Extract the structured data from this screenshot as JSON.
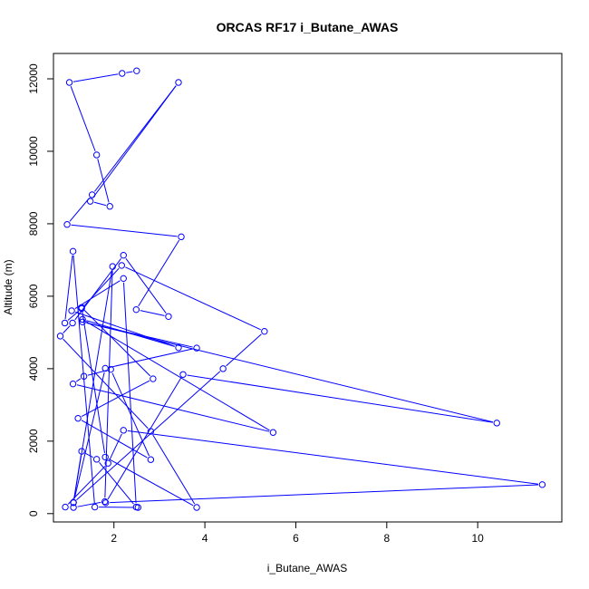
{
  "chart_data": {
    "type": "line",
    "title": "ORCAS RF17 i_Butane_AWAS",
    "xlabel": "i_Butane_AWAS",
    "ylabel": "Altitude (m)",
    "xlim": [
      0.67,
      11.85
    ],
    "ylim": [
      -230,
      12700
    ],
    "xticks": [
      2,
      4,
      6,
      8,
      10
    ],
    "xtick_labels": [
      "2",
      "4",
      "6",
      "8",
      "10"
    ],
    "yticks": [
      0,
      2000,
      4000,
      6000,
      8000,
      10000,
      12000
    ],
    "ytick_labels": [
      "0",
      "2000",
      "4000",
      "6000",
      "8000",
      "10000",
      "12000"
    ],
    "grid": false,
    "legend": "none",
    "colors": {
      "series": "#0000ff",
      "axis": "#000000",
      "background": "#ffffff"
    },
    "series": [
      {
        "x": [
          2.5,
          2.18,
          1.02,
          1.62,
          1.91,
          1.48,
          3.42,
          1.52,
          0.97,
          3.48,
          2.49,
          3.2,
          2.21,
          1.09,
          0.82,
          2.81,
          3.82,
          1.81,
          1.29,
          2.86,
          1.21,
          2.81,
          1.93,
          1.34,
          1.1,
          5.5,
          1.31,
          3.42,
          1.07,
          2.21,
          2.49,
          1.62,
          1.29,
          1.11,
          1.97,
          1.8,
          1.11,
          0.93,
          1.87,
          2.21,
          11.42,
          1.82,
          3.52,
          10.42,
          1.31,
          3.82,
          1.81,
          1.11,
          4.4,
          5.31,
          2.17,
          1.29,
          0.92,
          1.1,
          1.58,
          2.53
        ],
        "y": [
          12220,
          12150,
          11900,
          9900,
          8480,
          8620,
          11900,
          8800,
          7980,
          7640,
          5630,
          5440,
          7130,
          5260,
          4900,
          2270,
          170,
          1560,
          5690,
          3720,
          2630,
          1490,
          3980,
          3790,
          3580,
          2240,
          5360,
          4580,
          5600,
          6490,
          180,
          1500,
          1720,
          310,
          6820,
          330,
          170,
          180,
          1390,
          2300,
          800,
          300,
          3840,
          2500,
          5290,
          4570,
          4010,
          300,
          4000,
          5030,
          6850,
          5660,
          5260,
          7240,
          180,
          170
        ]
      }
    ]
  }
}
